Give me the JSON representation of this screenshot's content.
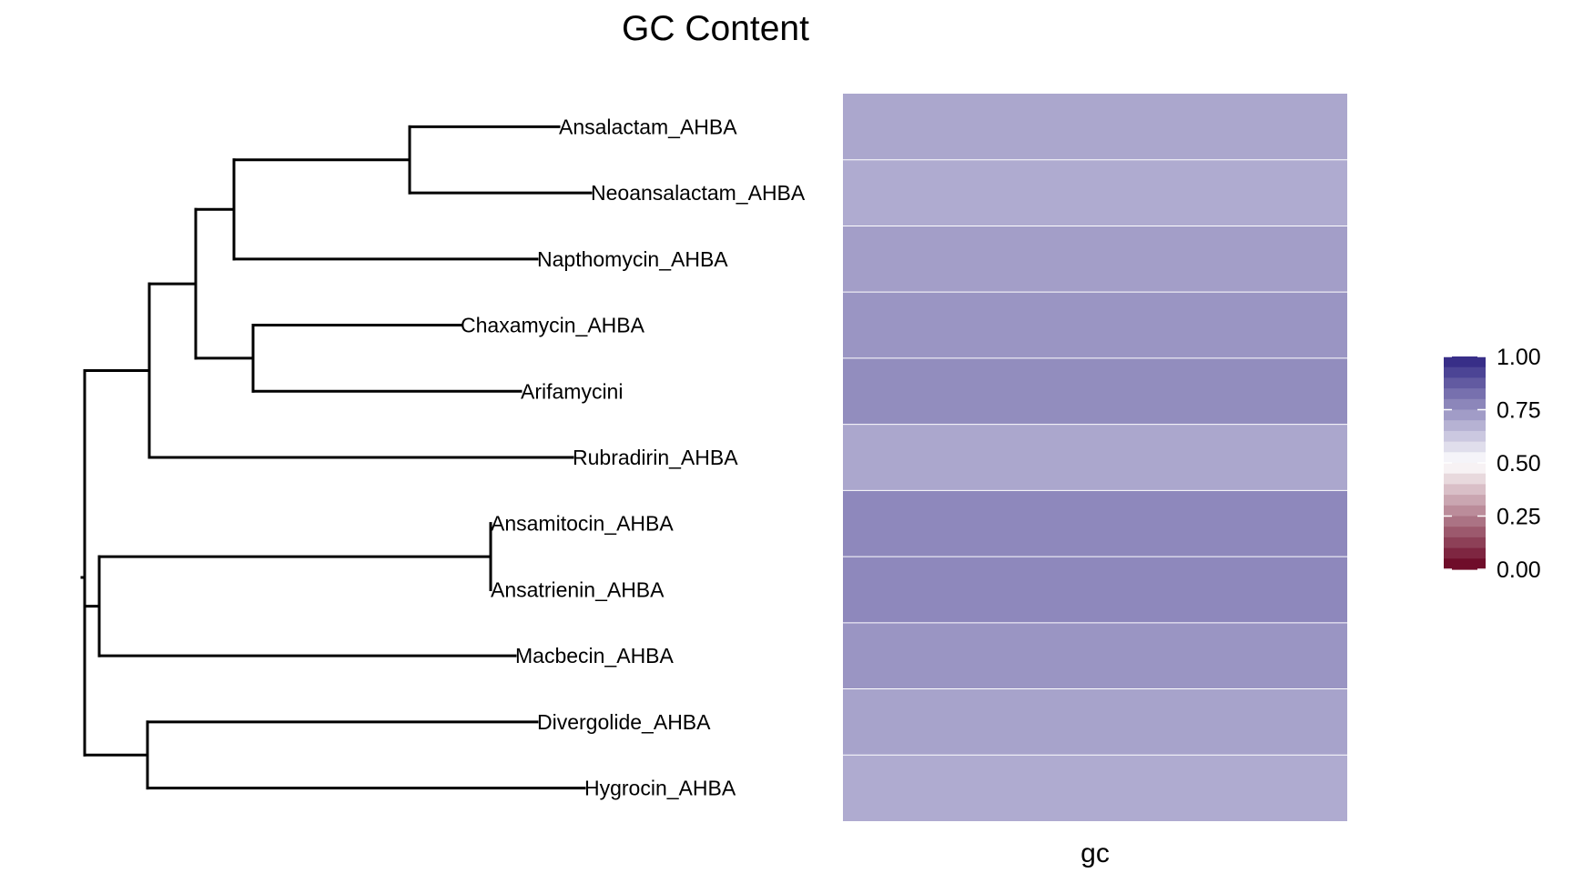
{
  "chart_data": {
    "type": "heatmap",
    "title": "GC Content",
    "column_labels": [
      "gc"
    ],
    "row_labels": [
      "Ansalactam_AHBA",
      "Neoansalactam_AHBA",
      "Napthomycin_AHBA",
      "Chaxamycin_AHBA",
      "Arifamycini",
      "Rubradirin_AHBA",
      "Ansamitocin_AHBA",
      "Ansatrienin_AHBA",
      "Macbecin_AHBA",
      "Divergolide_AHBA",
      "Hygrocin_AHBA"
    ],
    "values": [
      0.7,
      0.69,
      0.72,
      0.74,
      0.76,
      0.7,
      0.77,
      0.77,
      0.74,
      0.71,
      0.69
    ],
    "color_scale": {
      "min": 0,
      "mid": 0.5,
      "max": 1,
      "low_color": "#67001f",
      "mid_color": "#ffffff",
      "high_color": "#2d2382"
    },
    "legend": {
      "position": "right",
      "ticks": [
        1.0,
        0.75,
        0.5,
        0.25,
        0.0
      ],
      "tick_labels": [
        "1.00",
        "0.75",
        "0.50",
        "0.25",
        "0.00"
      ]
    },
    "tree": {
      "type": "dendrogram"
    }
  }
}
